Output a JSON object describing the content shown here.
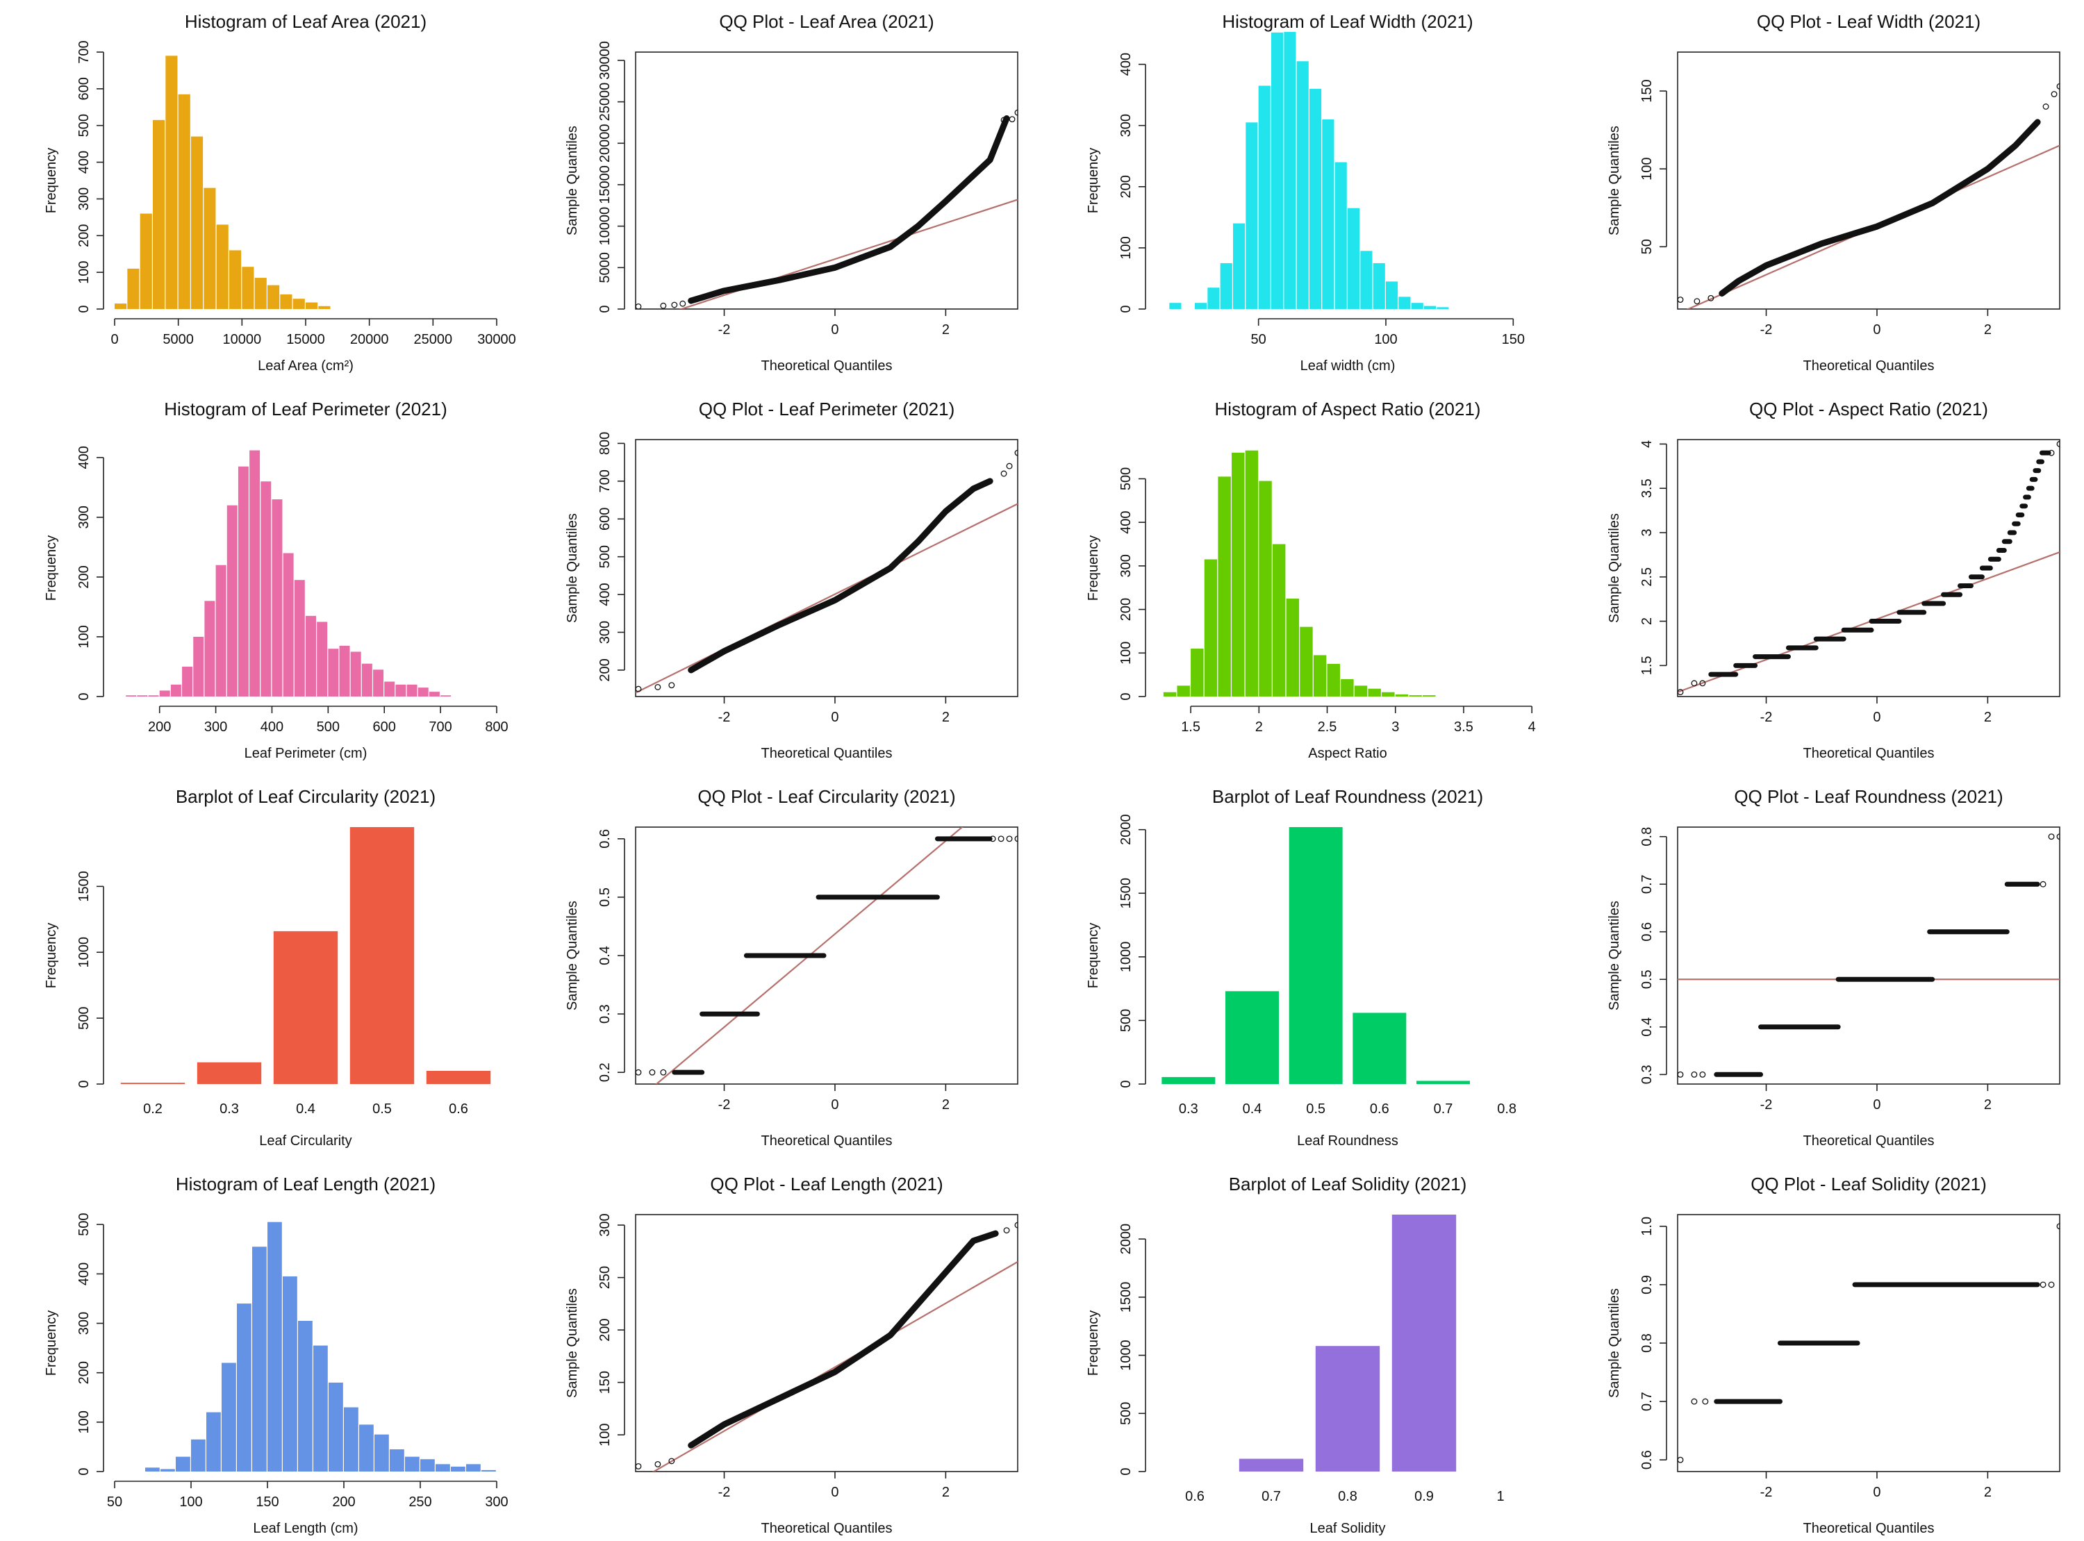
{
  "chart_data": [
    {
      "id": "area_hist",
      "type": "bar",
      "kind": "hist",
      "title": "Histogram of Leaf Area (2021)",
      "xlabel": "Leaf Area (cm²)",
      "ylabel": "Frequency",
      "color": "#E8A712",
      "xlim": [
        0,
        30000
      ],
      "ylim": [
        0,
        700
      ],
      "xticks": [
        0,
        5000,
        10000,
        15000,
        20000,
        25000,
        30000
      ],
      "yticks": [
        0,
        100,
        200,
        300,
        400,
        500,
        600,
        700
      ],
      "bin_start": 0,
      "bin_width": 1000,
      "values": [
        15,
        110,
        260,
        515,
        690,
        585,
        470,
        330,
        230,
        160,
        115,
        85,
        65,
        40,
        28,
        18,
        8
      ]
    },
    {
      "id": "area_qq",
      "type": "scatter",
      "kind": "qq",
      "title": "QQ Plot - Leaf Area (2021)",
      "xlabel": "Theoretical Quantiles",
      "ylabel": "Sample Quantiles",
      "xlim": [
        -3.6,
        3.3
      ],
      "ylim": [
        0,
        31000
      ],
      "xticks": [
        -2,
        0,
        2
      ],
      "yticks": [
        0,
        5000,
        10000,
        15000,
        20000,
        25000,
        30000
      ],
      "ref_line": [
        [
          -3.6,
          -1800
        ],
        [
          3.3,
          13200
        ]
      ],
      "curve": [
        [
          -2.6,
          1000
        ],
        [
          -2,
          2200
        ],
        [
          -1,
          3500
        ],
        [
          0,
          5000
        ],
        [
          1,
          7500
        ],
        [
          1.5,
          10000
        ],
        [
          2,
          13000
        ],
        [
          2.4,
          15500
        ],
        [
          2.8,
          18000
        ],
        [
          3.1,
          23000
        ]
      ],
      "outliers": [
        [
          -3.55,
          300
        ],
        [
          -3.1,
          400
        ],
        [
          -2.9,
          500
        ],
        [
          -2.75,
          650
        ],
        [
          3.05,
          22800
        ],
        [
          3.2,
          22900
        ],
        [
          3.3,
          23700
        ]
      ]
    },
    {
      "id": "width_hist",
      "type": "bar",
      "kind": "hist",
      "title": "Histogram of Leaf Width (2021)",
      "xlabel": "Leaf width (cm)",
      "ylabel": "Frequency",
      "color": "#22E4EC",
      "xlim": [
        10,
        160
      ],
      "ylim": [
        0,
        420
      ],
      "xticks": [
        50,
        100,
        150
      ],
      "yticks": [
        0,
        100,
        200,
        300,
        400
      ],
      "bin_start": 15,
      "bin_width": 5,
      "values": [
        10,
        0,
        10,
        35,
        75,
        140,
        305,
        365,
        452,
        453,
        405,
        360,
        310,
        240,
        165,
        95,
        75,
        45,
        20,
        10,
        5,
        3
      ]
    },
    {
      "id": "width_qq",
      "type": "scatter",
      "kind": "qq",
      "title": "QQ Plot - Leaf Width (2021)",
      "xlabel": "Theoretical Quantiles",
      "ylabel": "Sample Quantiles",
      "xlim": [
        -3.6,
        3.3
      ],
      "ylim": [
        10,
        175
      ],
      "xticks": [
        -2,
        0,
        2
      ],
      "yticks": [
        50,
        100,
        150
      ],
      "ref_line": [
        [
          -3.6,
          7
        ],
        [
          3.3,
          115
        ]
      ],
      "curve": [
        [
          -2.8,
          20
        ],
        [
          -2.5,
          28
        ],
        [
          -2,
          38
        ],
        [
          -1,
          52
        ],
        [
          0,
          63
        ],
        [
          1,
          78
        ],
        [
          2,
          100
        ],
        [
          2.5,
          115
        ],
        [
          2.9,
          130
        ]
      ],
      "outliers": [
        [
          -3.55,
          16
        ],
        [
          -3.25,
          15
        ],
        [
          -3.0,
          17
        ],
        [
          3.05,
          140
        ],
        [
          3.2,
          148
        ],
        [
          3.3,
          153
        ]
      ]
    },
    {
      "id": "perim_hist",
      "type": "bar",
      "kind": "hist",
      "title": "Histogram of Leaf Perimeter (2021)",
      "xlabel": "Leaf Perimeter (cm)",
      "ylabel": "Frequency",
      "color": "#EA6CA6",
      "xlim": [
        120,
        800
      ],
      "ylim": [
        0,
        430
      ],
      "xticks": [
        200,
        300,
        400,
        500,
        600,
        700,
        800
      ],
      "yticks": [
        0,
        100,
        200,
        300,
        400
      ],
      "bin_start": 140,
      "bin_width": 20,
      "values": [
        2,
        2,
        2,
        10,
        20,
        50,
        100,
        160,
        220,
        320,
        385,
        412,
        360,
        330,
        240,
        195,
        135,
        125,
        80,
        85,
        75,
        55,
        45,
        25,
        20,
        20,
        15,
        8,
        2
      ]
    },
    {
      "id": "perim_qq",
      "type": "scatter",
      "kind": "qq",
      "title": "QQ Plot - Leaf Perimeter (2021)",
      "xlabel": "Theoretical Quantiles",
      "ylabel": "Sample Quantiles",
      "xlim": [
        -3.6,
        3.3
      ],
      "ylim": [
        130,
        810
      ],
      "xticks": [
        -2,
        0,
        2
      ],
      "yticks": [
        200,
        300,
        400,
        500,
        600,
        700,
        800
      ],
      "ref_line": [
        [
          -3.6,
          140
        ],
        [
          3.3,
          640
        ]
      ],
      "curve": [
        [
          -2.6,
          200
        ],
        [
          -2,
          250
        ],
        [
          -1,
          320
        ],
        [
          0,
          385
        ],
        [
          1,
          470
        ],
        [
          1.5,
          540
        ],
        [
          2,
          620
        ],
        [
          2.5,
          680
        ],
        [
          2.8,
          700
        ]
      ],
      "outliers": [
        [
          -3.55,
          150
        ],
        [
          -3.2,
          155
        ],
        [
          -2.95,
          160
        ],
        [
          3.05,
          720
        ],
        [
          3.15,
          740
        ],
        [
          3.3,
          775
        ]
      ]
    },
    {
      "id": "aspect_hist",
      "type": "bar",
      "kind": "hist",
      "title": "Histogram of Aspect Ratio (2021)",
      "xlabel": "Aspect Ratio",
      "ylabel": "Frequency",
      "color": "#66CC00",
      "xlim": [
        1.25,
        4.05
      ],
      "ylim": [
        0,
        590
      ],
      "xticks": [
        1.5,
        2.0,
        2.5,
        3.0,
        3.5,
        4.0
      ],
      "yticks": [
        0,
        100,
        200,
        300,
        400,
        500
      ],
      "bin_start": 1.3,
      "bin_width": 0.1,
      "values": [
        10,
        25,
        110,
        315,
        505,
        560,
        565,
        495,
        350,
        225,
        160,
        95,
        75,
        40,
        25,
        18,
        10,
        5,
        3,
        3
      ]
    },
    {
      "id": "aspect_qq",
      "type": "scatter",
      "kind": "qq",
      "title": "QQ Plot - Aspect Ratio (2021)",
      "xlabel": "Theoretical Quantiles",
      "ylabel": "Sample Quantiles",
      "xlim": [
        -3.6,
        3.3
      ],
      "ylim": [
        1.15,
        4.05
      ],
      "xticks": [
        -2,
        0,
        2
      ],
      "yticks": [
        1.5,
        2.0,
        2.5,
        3.0,
        3.5,
        4.0
      ],
      "ref_line": [
        [
          -3.6,
          1.2
        ],
        [
          3.3,
          2.78
        ]
      ],
      "steps": [
        [
          -3.0,
          -2.55,
          1.4
        ],
        [
          -2.55,
          -2.2,
          1.5
        ],
        [
          -2.2,
          -1.6,
          1.6
        ],
        [
          -1.6,
          -1.1,
          1.7
        ],
        [
          -1.1,
          -0.6,
          1.8
        ],
        [
          -0.6,
          -0.1,
          1.9
        ],
        [
          -0.1,
          0.4,
          2.0
        ],
        [
          0.4,
          0.85,
          2.1
        ],
        [
          0.85,
          1.2,
          2.2
        ],
        [
          1.2,
          1.5,
          2.3
        ],
        [
          1.5,
          1.7,
          2.4
        ],
        [
          1.7,
          1.9,
          2.5
        ],
        [
          1.9,
          2.05,
          2.6
        ],
        [
          2.05,
          2.2,
          2.7
        ],
        [
          2.2,
          2.3,
          2.8
        ],
        [
          2.3,
          2.4,
          2.9
        ],
        [
          2.4,
          2.48,
          3.0
        ],
        [
          2.48,
          2.55,
          3.1
        ],
        [
          2.55,
          2.62,
          3.2
        ],
        [
          2.62,
          2.68,
          3.3
        ],
        [
          2.68,
          2.74,
          3.4
        ],
        [
          2.74,
          2.8,
          3.5
        ],
        [
          2.8,
          2.86,
          3.6
        ],
        [
          2.86,
          2.92,
          3.7
        ],
        [
          2.92,
          2.98,
          3.8
        ],
        [
          2.98,
          3.1,
          3.9
        ]
      ],
      "outliers": [
        [
          -3.55,
          1.2
        ],
        [
          -3.3,
          1.3
        ],
        [
          -3.15,
          1.3
        ],
        [
          3.15,
          3.9
        ],
        [
          3.3,
          4.0
        ]
      ]
    },
    {
      "id": "circ_bar",
      "type": "bar",
      "kind": "bar",
      "title": "Barplot of Leaf Circularity (2021)",
      "xlabel": "Leaf Circularity",
      "ylabel": "Frequency",
      "color": "#ED5B42",
      "categories": [
        "0.2",
        "0.3",
        "0.4",
        "0.5",
        "0.6"
      ],
      "values": [
        10,
        165,
        1160,
        1950,
        100
      ],
      "ylim": [
        0,
        1950
      ],
      "yticks": [
        0,
        500,
        1000,
        1500
      ]
    },
    {
      "id": "circ_qq",
      "type": "scatter",
      "kind": "qq",
      "title": "QQ Plot - Leaf Circularity (2021)",
      "xlabel": "Theoretical Quantiles",
      "ylabel": "Sample Quantiles",
      "xlim": [
        -3.6,
        3.3
      ],
      "ylim": [
        0.18,
        0.62
      ],
      "xticks": [
        -2,
        0,
        2
      ],
      "yticks": [
        0.2,
        0.3,
        0.4,
        0.5,
        0.6
      ],
      "ref_line": [
        [
          -3.6,
          0.15
        ],
        [
          3.3,
          0.7
        ]
      ],
      "steps": [
        [
          -2.9,
          -2.4,
          0.2
        ],
        [
          -2.4,
          -1.4,
          0.3
        ],
        [
          -1.6,
          -0.2,
          0.4
        ],
        [
          -0.3,
          1.85,
          0.5
        ],
        [
          1.85,
          2.8,
          0.6
        ]
      ],
      "outliers": [
        [
          -3.55,
          0.2
        ],
        [
          -3.3,
          0.2
        ],
        [
          -3.1,
          0.2
        ],
        [
          2.85,
          0.6
        ],
        [
          3.0,
          0.6
        ],
        [
          3.15,
          0.6
        ],
        [
          3.3,
          0.6
        ]
      ]
    },
    {
      "id": "round_bar",
      "type": "bar",
      "kind": "bar",
      "title": "Barplot of Leaf Roundness (2021)",
      "xlabel": "Leaf Roundness",
      "ylabel": "Frequency",
      "color": "#00CC66",
      "categories": [
        "0.3",
        "0.4",
        "0.5",
        "0.6",
        "0.7",
        "0.8"
      ],
      "values": [
        55,
        730,
        2020,
        560,
        25,
        0
      ],
      "ylim": [
        0,
        2020
      ],
      "yticks": [
        0,
        500,
        1000,
        1500,
        2000
      ]
    },
    {
      "id": "round_qq",
      "type": "scatter",
      "kind": "qq",
      "title": "QQ Plot - Leaf Roundness (2021)",
      "xlabel": "Theoretical Quantiles",
      "ylabel": "Sample Quantiles",
      "xlim": [
        -3.6,
        3.3
      ],
      "ylim": [
        0.28,
        0.82
      ],
      "xticks": [
        -2,
        0,
        2
      ],
      "yticks": [
        0.3,
        0.4,
        0.5,
        0.6,
        0.7,
        0.8
      ],
      "ref_line": [
        [
          -3.6,
          0.5
        ],
        [
          3.3,
          0.5
        ]
      ],
      "steps": [
        [
          -2.9,
          -2.1,
          0.3
        ],
        [
          -2.1,
          -0.7,
          0.4
        ],
        [
          -0.7,
          1.0,
          0.5
        ],
        [
          0.95,
          2.35,
          0.6
        ],
        [
          2.35,
          2.9,
          0.7
        ]
      ],
      "outliers": [
        [
          -3.55,
          0.3
        ],
        [
          -3.3,
          0.3
        ],
        [
          -3.15,
          0.3
        ],
        [
          3.0,
          0.7
        ],
        [
          3.15,
          0.8
        ],
        [
          3.3,
          0.8
        ]
      ]
    },
    {
      "id": "length_hist",
      "type": "bar",
      "kind": "hist",
      "title": "Histogram of Leaf Length (2021)",
      "xlabel": "Leaf Length (cm)",
      "ylabel": "Frequency",
      "color": "#6493E6",
      "xlim": [
        50,
        300
      ],
      "ylim": [
        0,
        520
      ],
      "xticks": [
        50,
        100,
        150,
        200,
        250,
        300
      ],
      "yticks": [
        0,
        100,
        200,
        300,
        400,
        500
      ],
      "bin_start": 70,
      "bin_width": 10,
      "values": [
        8,
        5,
        30,
        65,
        120,
        220,
        340,
        455,
        505,
        395,
        305,
        255,
        180,
        130,
        95,
        75,
        45,
        30,
        25,
        15,
        10,
        15,
        3
      ]
    },
    {
      "id": "length_qq",
      "type": "scatter",
      "kind": "qq",
      "title": "QQ Plot - Leaf Length (2021)",
      "xlabel": "Theoretical Quantiles",
      "ylabel": "Sample Quantiles",
      "xlim": [
        -3.6,
        3.3
      ],
      "ylim": [
        65,
        310
      ],
      "xticks": [
        -2,
        0,
        2
      ],
      "yticks": [
        100,
        150,
        200,
        250,
        300
      ],
      "ref_line": [
        [
          -3.6,
          55
        ],
        [
          3.3,
          265
        ]
      ],
      "curve": [
        [
          -2.6,
          90
        ],
        [
          -2,
          110
        ],
        [
          -1,
          135
        ],
        [
          0,
          160
        ],
        [
          1,
          195
        ],
        [
          1.5,
          225
        ],
        [
          2,
          255
        ],
        [
          2.5,
          285
        ],
        [
          2.9,
          292
        ]
      ],
      "outliers": [
        [
          -3.55,
          70
        ],
        [
          -3.2,
          72
        ],
        [
          -2.95,
          75
        ],
        [
          3.1,
          295
        ],
        [
          3.3,
          300
        ]
      ]
    },
    {
      "id": "solid_bar",
      "type": "bar",
      "kind": "bar",
      "title": "Barplot of Leaf Solidity (2021)",
      "xlabel": "Leaf Solidity",
      "ylabel": "Frequency",
      "color": "#9370DB",
      "categories": [
        "0.6",
        "0.7",
        "0.8",
        "0.9",
        "1"
      ],
      "values": [
        0,
        110,
        1080,
        2210,
        0
      ],
      "ylim": [
        0,
        2210
      ],
      "yticks": [
        0,
        500,
        1000,
        1500,
        2000
      ]
    },
    {
      "id": "solid_qq",
      "type": "scatter",
      "kind": "qq",
      "title": "QQ Plot - Leaf Solidity (2021)",
      "xlabel": "Theoretical Quantiles",
      "ylabel": "Sample Quantiles",
      "xlim": [
        -3.6,
        3.3
      ],
      "ylim": [
        0.58,
        1.02
      ],
      "xticks": [
        -2,
        0,
        2
      ],
      "yticks": [
        0.6,
        0.7,
        0.8,
        0.9,
        1.0
      ],
      "steps": [
        [
          -2.9,
          -1.75,
          0.7
        ],
        [
          -1.75,
          -0.35,
          0.8
        ],
        [
          -0.4,
          2.9,
          0.9
        ]
      ],
      "outliers": [
        [
          -3.55,
          0.6
        ],
        [
          -3.3,
          0.7
        ],
        [
          -3.1,
          0.7
        ],
        [
          3.0,
          0.9
        ],
        [
          3.15,
          0.9
        ],
        [
          3.3,
          1.0
        ]
      ]
    }
  ]
}
